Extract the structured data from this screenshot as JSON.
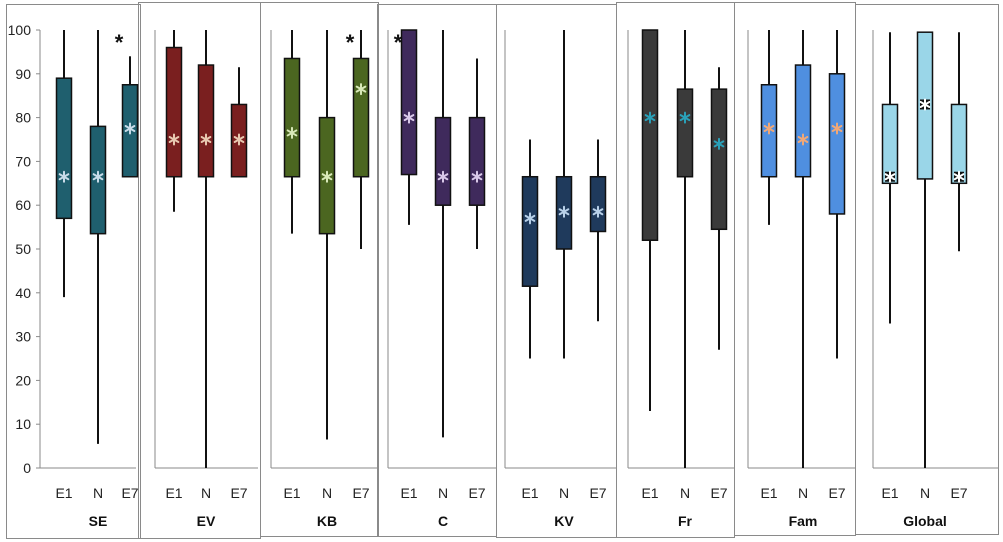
{
  "chart_data": {
    "type": "box",
    "ylim": [
      0,
      100
    ],
    "y_ticks": [
      "0",
      "10",
      "20",
      "30",
      "40",
      "50",
      "60",
      "70",
      "80",
      "90",
      "100"
    ],
    "categories": [
      "E1",
      "N",
      "E7"
    ],
    "grid": false,
    "panels": [
      {
        "label": "SE",
        "color": "#1f5f6e",
        "mean_color": "#c8dbe8",
        "boxes": [
          {
            "category": "E1",
            "min": 39,
            "q1": 57,
            "q3": 89,
            "max": 100,
            "mean": 66.5
          },
          {
            "category": "N",
            "min": 5.5,
            "q1": 53.5,
            "q3": 78,
            "max": 100,
            "mean": 66.5
          },
          {
            "category": "E7",
            "min": 66.5,
            "q1": 66.5,
            "q3": 87.5,
            "max": 94,
            "mean": 77.5
          }
        ],
        "annotations": [
          {
            "category": "E7",
            "text": "*"
          }
        ]
      },
      {
        "label": "EV",
        "color": "#7a1f1f",
        "mean_color": "#e8c8b0",
        "boxes": [
          {
            "category": "E1",
            "min": 58.5,
            "q1": 66.5,
            "q3": 96,
            "max": 100,
            "mean": 75
          },
          {
            "category": "N",
            "min": 0,
            "q1": 66.5,
            "q3": 92,
            "max": 100,
            "mean": 75
          },
          {
            "category": "E7",
            "min": 66.5,
            "q1": 66.5,
            "q3": 83,
            "max": 91.5,
            "mean": 75
          }
        ],
        "annotations": []
      },
      {
        "label": "KB",
        "color": "#4b6620",
        "mean_color": "#d8e8b8",
        "boxes": [
          {
            "category": "E1",
            "min": 53.5,
            "q1": 66.5,
            "q3": 93.5,
            "max": 100,
            "mean": 76.5
          },
          {
            "category": "N",
            "min": 6.5,
            "q1": 53.5,
            "q3": 80,
            "max": 100,
            "mean": 66.5
          },
          {
            "category": "E7",
            "min": 50,
            "q1": 66.5,
            "q3": 93.5,
            "max": 100,
            "mean": 86.5
          }
        ],
        "annotations": [
          {
            "category": "E7",
            "text": "*"
          }
        ]
      },
      {
        "label": "C",
        "color": "#3f2a5c",
        "mean_color": "#d8c8e8",
        "boxes": [
          {
            "category": "E1",
            "min": 55.5,
            "q1": 67,
            "q3": 100,
            "max": 100,
            "mean": 80
          },
          {
            "category": "N",
            "min": 7,
            "q1": 60,
            "q3": 80,
            "max": 100,
            "mean": 66.5
          },
          {
            "category": "E7",
            "min": 50,
            "q1": 60,
            "q3": 80,
            "max": 93.5,
            "mean": 66.5
          }
        ],
        "annotations": [
          {
            "category": "E1",
            "text": "*"
          }
        ]
      },
      {
        "label": "KV",
        "color": "#1f3a5c",
        "mean_color": "#b8d0e8",
        "boxes": [
          {
            "category": "E1",
            "min": 25,
            "q1": 41.5,
            "q3": 66.5,
            "max": 75,
            "mean": 57
          },
          {
            "category": "N",
            "min": 25,
            "q1": 50,
            "q3": 66.5,
            "max": 100,
            "mean": 58.5
          },
          {
            "category": "E7",
            "min": 33.5,
            "q1": 54,
            "q3": 66.5,
            "max": 75,
            "mean": 58.5
          }
        ],
        "annotations": []
      },
      {
        "label": "Fr",
        "color": "#3a3a3a",
        "mean_color": "#2aa0b8",
        "boxes": [
          {
            "category": "E1",
            "min": 13,
            "q1": 52,
            "q3": 100,
            "max": 100,
            "mean": 80
          },
          {
            "category": "N",
            "min": 0,
            "q1": 66.5,
            "q3": 86.5,
            "max": 100,
            "mean": 80
          },
          {
            "category": "E7",
            "min": 27,
            "q1": 54.5,
            "q3": 86.5,
            "max": 91.5,
            "mean": 74
          }
        ],
        "annotations": []
      },
      {
        "label": "Fam",
        "color": "#4f8fe0",
        "mean_color": "#f0a878",
        "boxes": [
          {
            "category": "E1",
            "min": 55.5,
            "q1": 66.5,
            "q3": 87.5,
            "max": 100,
            "mean": 77.5
          },
          {
            "category": "N",
            "min": 0,
            "q1": 66.5,
            "q3": 92,
            "max": 100,
            "mean": 75
          },
          {
            "category": "E7",
            "min": 25,
            "q1": 58,
            "q3": 90,
            "max": 100,
            "mean": 77.5
          }
        ],
        "annotations": []
      },
      {
        "label": "Global",
        "color": "#9ad6e8",
        "mean_color": "#111111",
        "boxes": [
          {
            "category": "E1",
            "min": 33,
            "q1": 65,
            "q3": 83,
            "max": 99.5,
            "mean": 66.5
          },
          {
            "category": "N",
            "min": 0,
            "q1": 66,
            "q3": 99.5,
            "max": 99.5,
            "mean": 83
          },
          {
            "category": "E7",
            "min": 49.5,
            "q1": 65,
            "q3": 83,
            "max": 99.5,
            "mean": 66.5
          }
        ],
        "annotations": []
      }
    ]
  }
}
